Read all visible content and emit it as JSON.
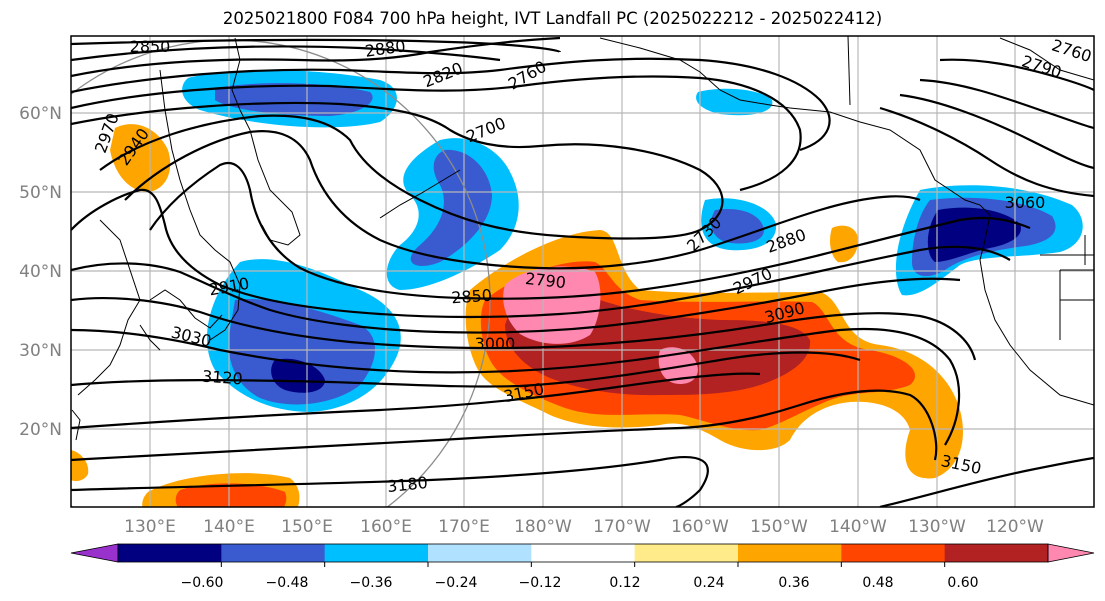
{
  "title": "2025021800 F084 700 hPa height, IVT Landfall PC (2025022212 - 2025022412)",
  "lat_labels": [
    "60°N",
    "50°N",
    "40°N",
    "30°N",
    "20°N"
  ],
  "lon_labels": [
    "130°E",
    "140°E",
    "150°E",
    "160°E",
    "170°E",
    "180°W",
    "170°W",
    "160°W",
    "150°W",
    "140°W",
    "130°W",
    "120°W"
  ],
  "contour_labels": [
    "2850",
    "2880",
    "2820",
    "2760",
    "2700",
    "2970",
    "2940",
    "2790",
    "2760",
    "2730",
    "2880",
    "2970",
    "3060",
    "2790",
    "2910",
    "2850",
    "3030",
    "3000",
    "3090",
    "3120",
    "3150",
    "3180",
    "3150",
    "2760"
  ],
  "colorbar": {
    "ticks": [
      "−0.60",
      "−0.48",
      "−0.36",
      "−0.24",
      "−0.12",
      "0.12",
      "0.24",
      "0.36",
      "0.48",
      "0.60"
    ],
    "colors": [
      "#9932cc",
      "#000080",
      "#3a5ad0",
      "#00bfff",
      "#b0e2ff",
      "#ffffff",
      "#ffeb8a",
      "#ffa500",
      "#ff4500",
      "#b22222",
      "#ff88b0"
    ]
  }
}
